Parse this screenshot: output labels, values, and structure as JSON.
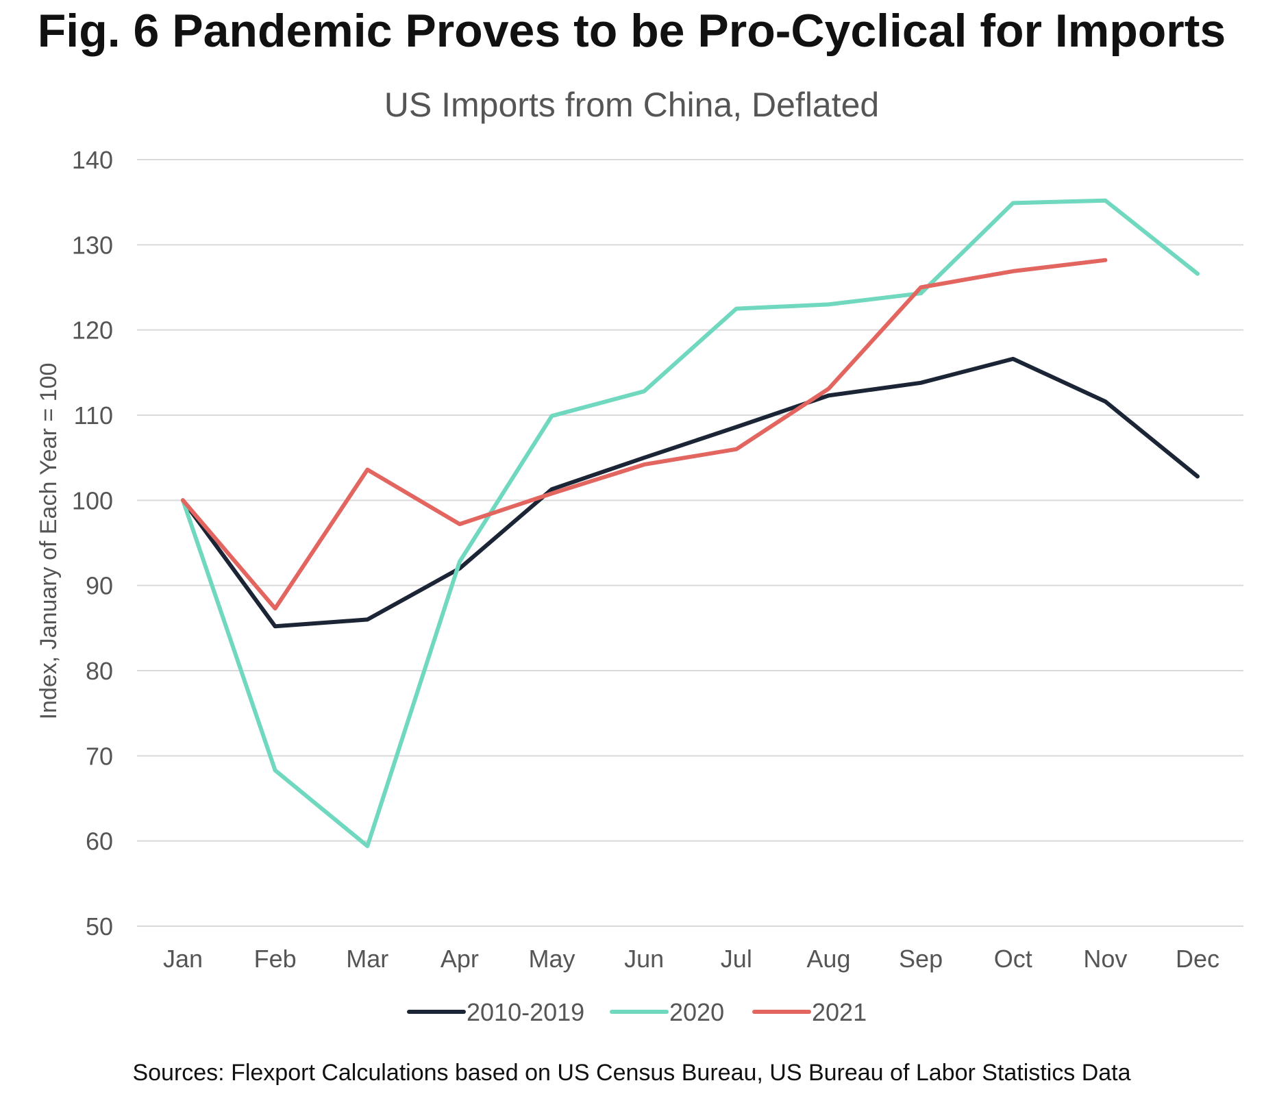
{
  "colors": {
    "s2010_2019": "#1c2536",
    "s2020": "#6fd8bf",
    "s2021": "#e36560",
    "grid": "#d9d9d9",
    "text_muted": "#555555"
  },
  "chart_data": {
    "type": "line",
    "title": "Fig. 6 Pandemic Proves to be Pro-Cyclical for Imports",
    "subtitle": "US Imports from China, Deflated",
    "xlabel": "",
    "ylabel": "Index, January of Each Year = 100",
    "ylim": [
      50,
      140
    ],
    "yticks": [
      50,
      60,
      70,
      80,
      90,
      100,
      110,
      120,
      130,
      140
    ],
    "grid": true,
    "legend_position": "bottom",
    "categories": [
      "Jan",
      "Feb",
      "Mar",
      "Apr",
      "May",
      "Jun",
      "Jul",
      "Aug",
      "Sep",
      "Oct",
      "Nov",
      "Dec"
    ],
    "series": [
      {
        "name": "2010-2019",
        "color_key": "s2010_2019",
        "values": [
          100,
          85.2,
          86.0,
          92.0,
          101.3,
          105.0,
          108.6,
          112.3,
          113.8,
          116.6,
          111.6,
          102.8
        ]
      },
      {
        "name": "2020",
        "color_key": "s2020",
        "values": [
          100,
          68.3,
          59.4,
          92.8,
          109.9,
          112.8,
          122.5,
          123.0,
          124.3,
          134.9,
          135.2,
          126.6
        ]
      },
      {
        "name": "2021",
        "color_key": "s2021",
        "values": [
          100,
          87.3,
          103.6,
          97.2,
          100.8,
          104.2,
          106.0,
          113.1,
          125.0,
          126.9,
          128.2,
          null
        ]
      }
    ],
    "source_note": "Sources: Flexport Calculations based on US Census Bureau, US Bureau of Labor Statistics Data"
  }
}
